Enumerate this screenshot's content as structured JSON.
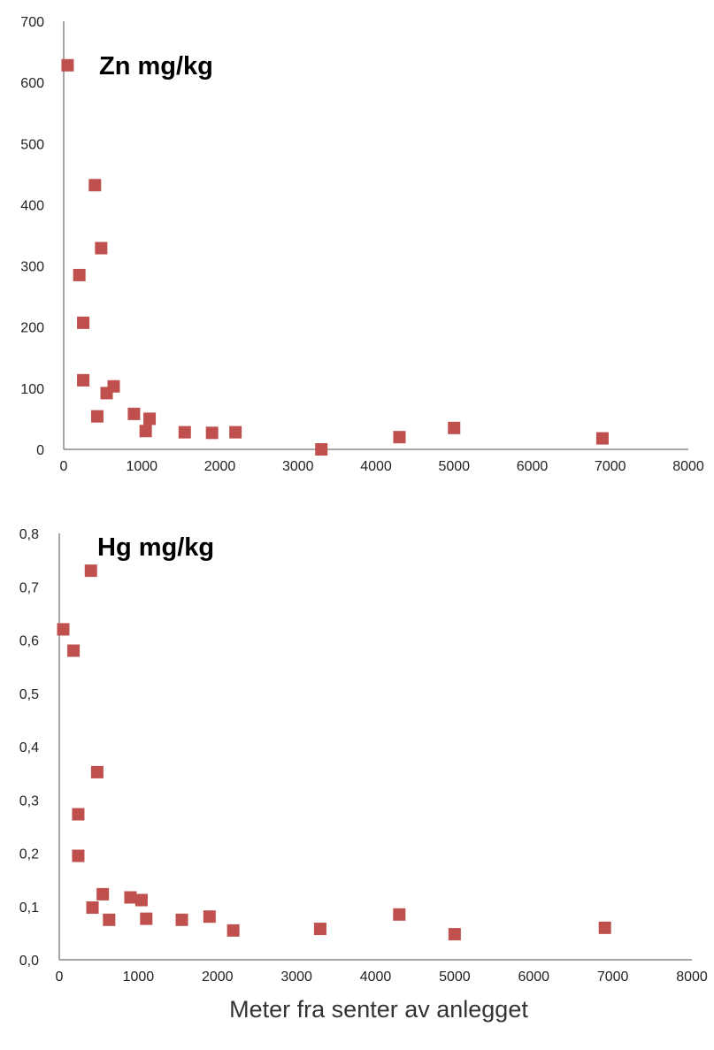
{
  "chart_data": [
    {
      "type": "scatter",
      "title": "Zn mg/kg",
      "xlabel": "",
      "ylabel": "",
      "xlim": [
        0,
        8000
      ],
      "ylim": [
        0,
        700
      ],
      "x_ticks": [
        "0",
        "1000",
        "2000",
        "3000",
        "4000",
        "5000",
        "6000",
        "7000",
        "8000"
      ],
      "y_ticks": [
        "0",
        "100",
        "200",
        "300",
        "400",
        "500",
        "600",
        "700"
      ],
      "grid": false,
      "legend": false,
      "marker_color": "#c0504d",
      "points": [
        {
          "x": 50,
          "y": 628
        },
        {
          "x": 200,
          "y": 285
        },
        {
          "x": 250,
          "y": 207
        },
        {
          "x": 250,
          "y": 113
        },
        {
          "x": 400,
          "y": 432
        },
        {
          "x": 430,
          "y": 54
        },
        {
          "x": 480,
          "y": 329
        },
        {
          "x": 550,
          "y": 92
        },
        {
          "x": 640,
          "y": 103
        },
        {
          "x": 900,
          "y": 58
        },
        {
          "x": 1050,
          "y": 30
        },
        {
          "x": 1100,
          "y": 50
        },
        {
          "x": 1550,
          "y": 28
        },
        {
          "x": 1900,
          "y": 27
        },
        {
          "x": 2200,
          "y": 28
        },
        {
          "x": 3300,
          "y": 0
        },
        {
          "x": 4300,
          "y": 20
        },
        {
          "x": 5000,
          "y": 35
        },
        {
          "x": 6900,
          "y": 18
        }
      ]
    },
    {
      "type": "scatter",
      "title": "Hg mg/kg",
      "xlabel": "Meter fra senter av anlegget",
      "ylabel": "",
      "xlim": [
        0,
        8000
      ],
      "ylim": [
        0,
        0.8
      ],
      "x_ticks": [
        "0",
        "1000",
        "2000",
        "3000",
        "4000",
        "5000",
        "6000",
        "7000",
        "8000"
      ],
      "y_ticks": [
        "0,0",
        "0,1",
        "0,2",
        "0,3",
        "0,4",
        "0,5",
        "0,6",
        "0,7",
        "0,8"
      ],
      "grid": false,
      "legend": false,
      "marker_color": "#c0504d",
      "points": [
        {
          "x": 50,
          "y": 0.62
        },
        {
          "x": 180,
          "y": 0.58
        },
        {
          "x": 240,
          "y": 0.273
        },
        {
          "x": 240,
          "y": 0.195
        },
        {
          "x": 400,
          "y": 0.73
        },
        {
          "x": 420,
          "y": 0.098
        },
        {
          "x": 480,
          "y": 0.352
        },
        {
          "x": 550,
          "y": 0.123
        },
        {
          "x": 630,
          "y": 0.075
        },
        {
          "x": 900,
          "y": 0.117
        },
        {
          "x": 1040,
          "y": 0.112
        },
        {
          "x": 1100,
          "y": 0.077
        },
        {
          "x": 1550,
          "y": 0.075
        },
        {
          "x": 1900,
          "y": 0.081
        },
        {
          "x": 2200,
          "y": 0.055
        },
        {
          "x": 3300,
          "y": 0.058
        },
        {
          "x": 4300,
          "y": 0.085
        },
        {
          "x": 5000,
          "y": 0.048
        },
        {
          "x": 6900,
          "y": 0.06
        }
      ]
    }
  ]
}
